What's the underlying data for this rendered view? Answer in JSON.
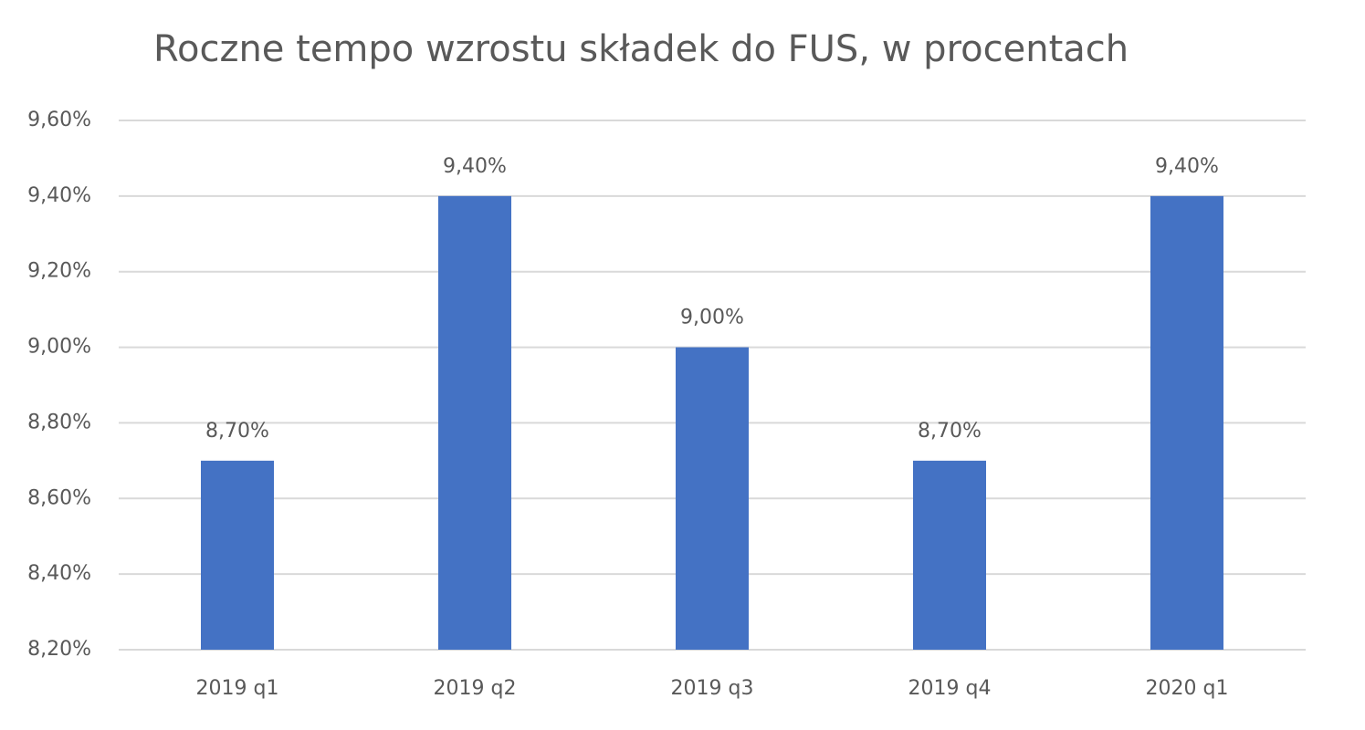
{
  "chart_data": {
    "type": "bar",
    "title": "Roczne tempo wzrostu składek do FUS, w procentach",
    "categories": [
      "2019 q1",
      "2019 q2",
      "2019 q3",
      "2019 q4",
      "2020 q1"
    ],
    "values": [
      8.7,
      9.4,
      9.0,
      8.7,
      9.4
    ],
    "value_labels": [
      "8,70%",
      "9,40%",
      "9,00%",
      "8,70%",
      "9,40%"
    ],
    "color": "#4472c4",
    "ylim": [
      8.2,
      9.6
    ],
    "yticks": [
      {
        "value": 8.2,
        "label": "8,20%"
      },
      {
        "value": 8.4,
        "label": "8,40%"
      },
      {
        "value": 8.6,
        "label": "8,60%"
      },
      {
        "value": 8.8,
        "label": "8,80%"
      },
      {
        "value": 9.0,
        "label": "9,00%"
      },
      {
        "value": 9.2,
        "label": "9,20%"
      },
      {
        "value": 9.4,
        "label": "9,40%"
      },
      {
        "value": 9.6,
        "label": "9,60%"
      }
    ],
    "grid": true
  }
}
